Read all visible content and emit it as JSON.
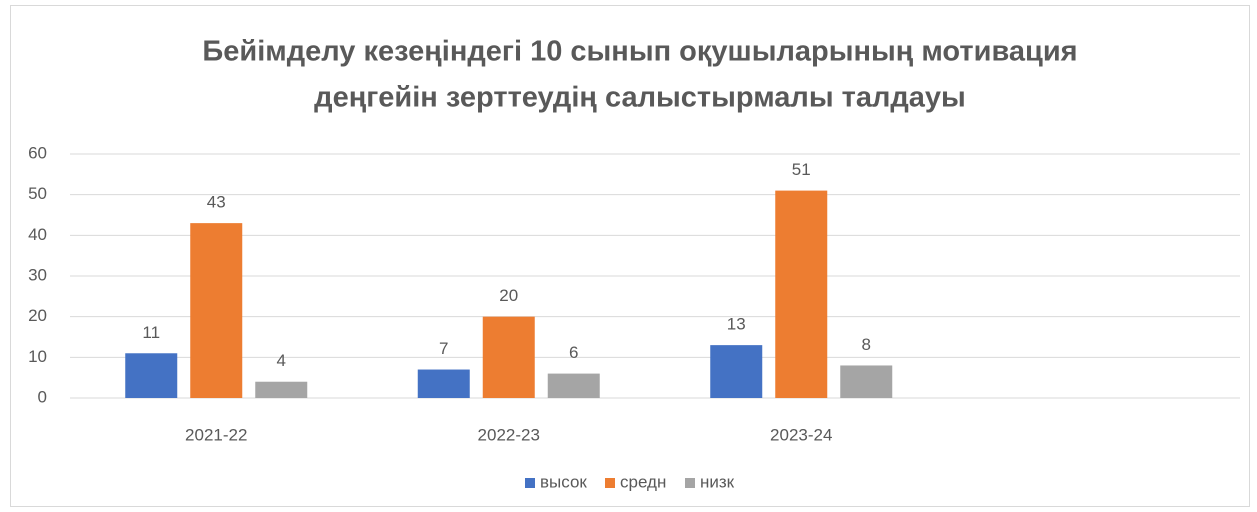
{
  "chart_data": {
    "type": "bar",
    "title": [
      "Бейімделу кезеңіндегі 10 сынып оқушыларының мотивация",
      "деңгейін зерттеудің салыстырмалы талдауы"
    ],
    "categories": [
      "2021-22",
      "2022-23",
      "2023-24",
      null
    ],
    "series": [
      {
        "name": "высок",
        "color": "#4472c4",
        "values": [
          11,
          7,
          13,
          null
        ]
      },
      {
        "name": "средн",
        "color": "#ed7d31",
        "values": [
          43,
          20,
          51,
          null
        ]
      },
      {
        "name": "низк",
        "color": "#a5a5a5",
        "values": [
          4,
          6,
          8,
          null
        ]
      }
    ],
    "ylim": [
      0,
      60
    ],
    "yticks": [
      0,
      10,
      20,
      30,
      40,
      50,
      60
    ],
    "grid": true,
    "legend": "bottom"
  }
}
